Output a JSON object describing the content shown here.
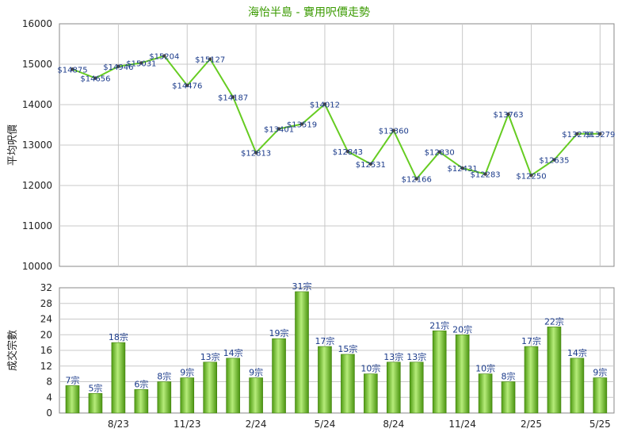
{
  "chart_data": [
    {
      "type": "line",
      "title": "海怡半島 - 實用呎價走勢",
      "ylabel": "平均呎價",
      "ylim": [
        10000,
        16000
      ],
      "yticks": [
        10000,
        11000,
        12000,
        13000,
        14000,
        15000,
        16000
      ],
      "x_ticks": [
        "8/23",
        "11/23",
        "2/24",
        "5/24",
        "8/24",
        "11/24",
        "2/25",
        "5/25"
      ],
      "grid": true,
      "color": "#66cc22",
      "values": [
        14875,
        14656,
        14946,
        15031,
        15204,
        14476,
        15127,
        14187,
        12813,
        13401,
        13519,
        14012,
        12843,
        12531,
        13360,
        12166,
        12830,
        12431,
        12283,
        13763,
        12250,
        12635,
        13279,
        13279
      ],
      "labels": [
        "$14875",
        "$14656",
        "$14946",
        "$15031",
        "$15204",
        "$14476",
        "$15127",
        "$14187",
        "$12813",
        "$13401",
        "$13519",
        "$14012",
        "$12843",
        "$12531",
        "$13360",
        "$12166",
        "$12830",
        "$12431",
        "$12283",
        "$13763",
        "$12250",
        "$12635",
        "$13279",
        "$13279"
      ]
    },
    {
      "type": "bar",
      "ylabel": "成交宗數",
      "ylim": [
        0,
        32
      ],
      "yticks": [
        0,
        4,
        8,
        12,
        16,
        20,
        24,
        28,
        32
      ],
      "x_ticks": [
        "8/23",
        "11/23",
        "2/24",
        "5/24",
        "8/24",
        "11/24",
        "2/25",
        "5/25"
      ],
      "grid": true,
      "color": "#66bb22",
      "values": [
        7,
        5,
        18,
        6,
        8,
        9,
        13,
        14,
        9,
        19,
        31,
        17,
        15,
        10,
        13,
        13,
        21,
        20,
        10,
        8,
        17,
        22,
        14,
        9
      ],
      "labels": [
        "7宗",
        "5宗",
        "18宗",
        "6宗",
        "8宗",
        "9宗",
        "13宗",
        "14宗",
        "9宗",
        "19宗",
        "31宗",
        "17宗",
        "15宗",
        "10宗",
        "13宗",
        "13宗",
        "21宗",
        "20宗",
        "10宗",
        "8宗",
        "17宗",
        "22宗",
        "14宗",
        "9宗"
      ]
    }
  ]
}
